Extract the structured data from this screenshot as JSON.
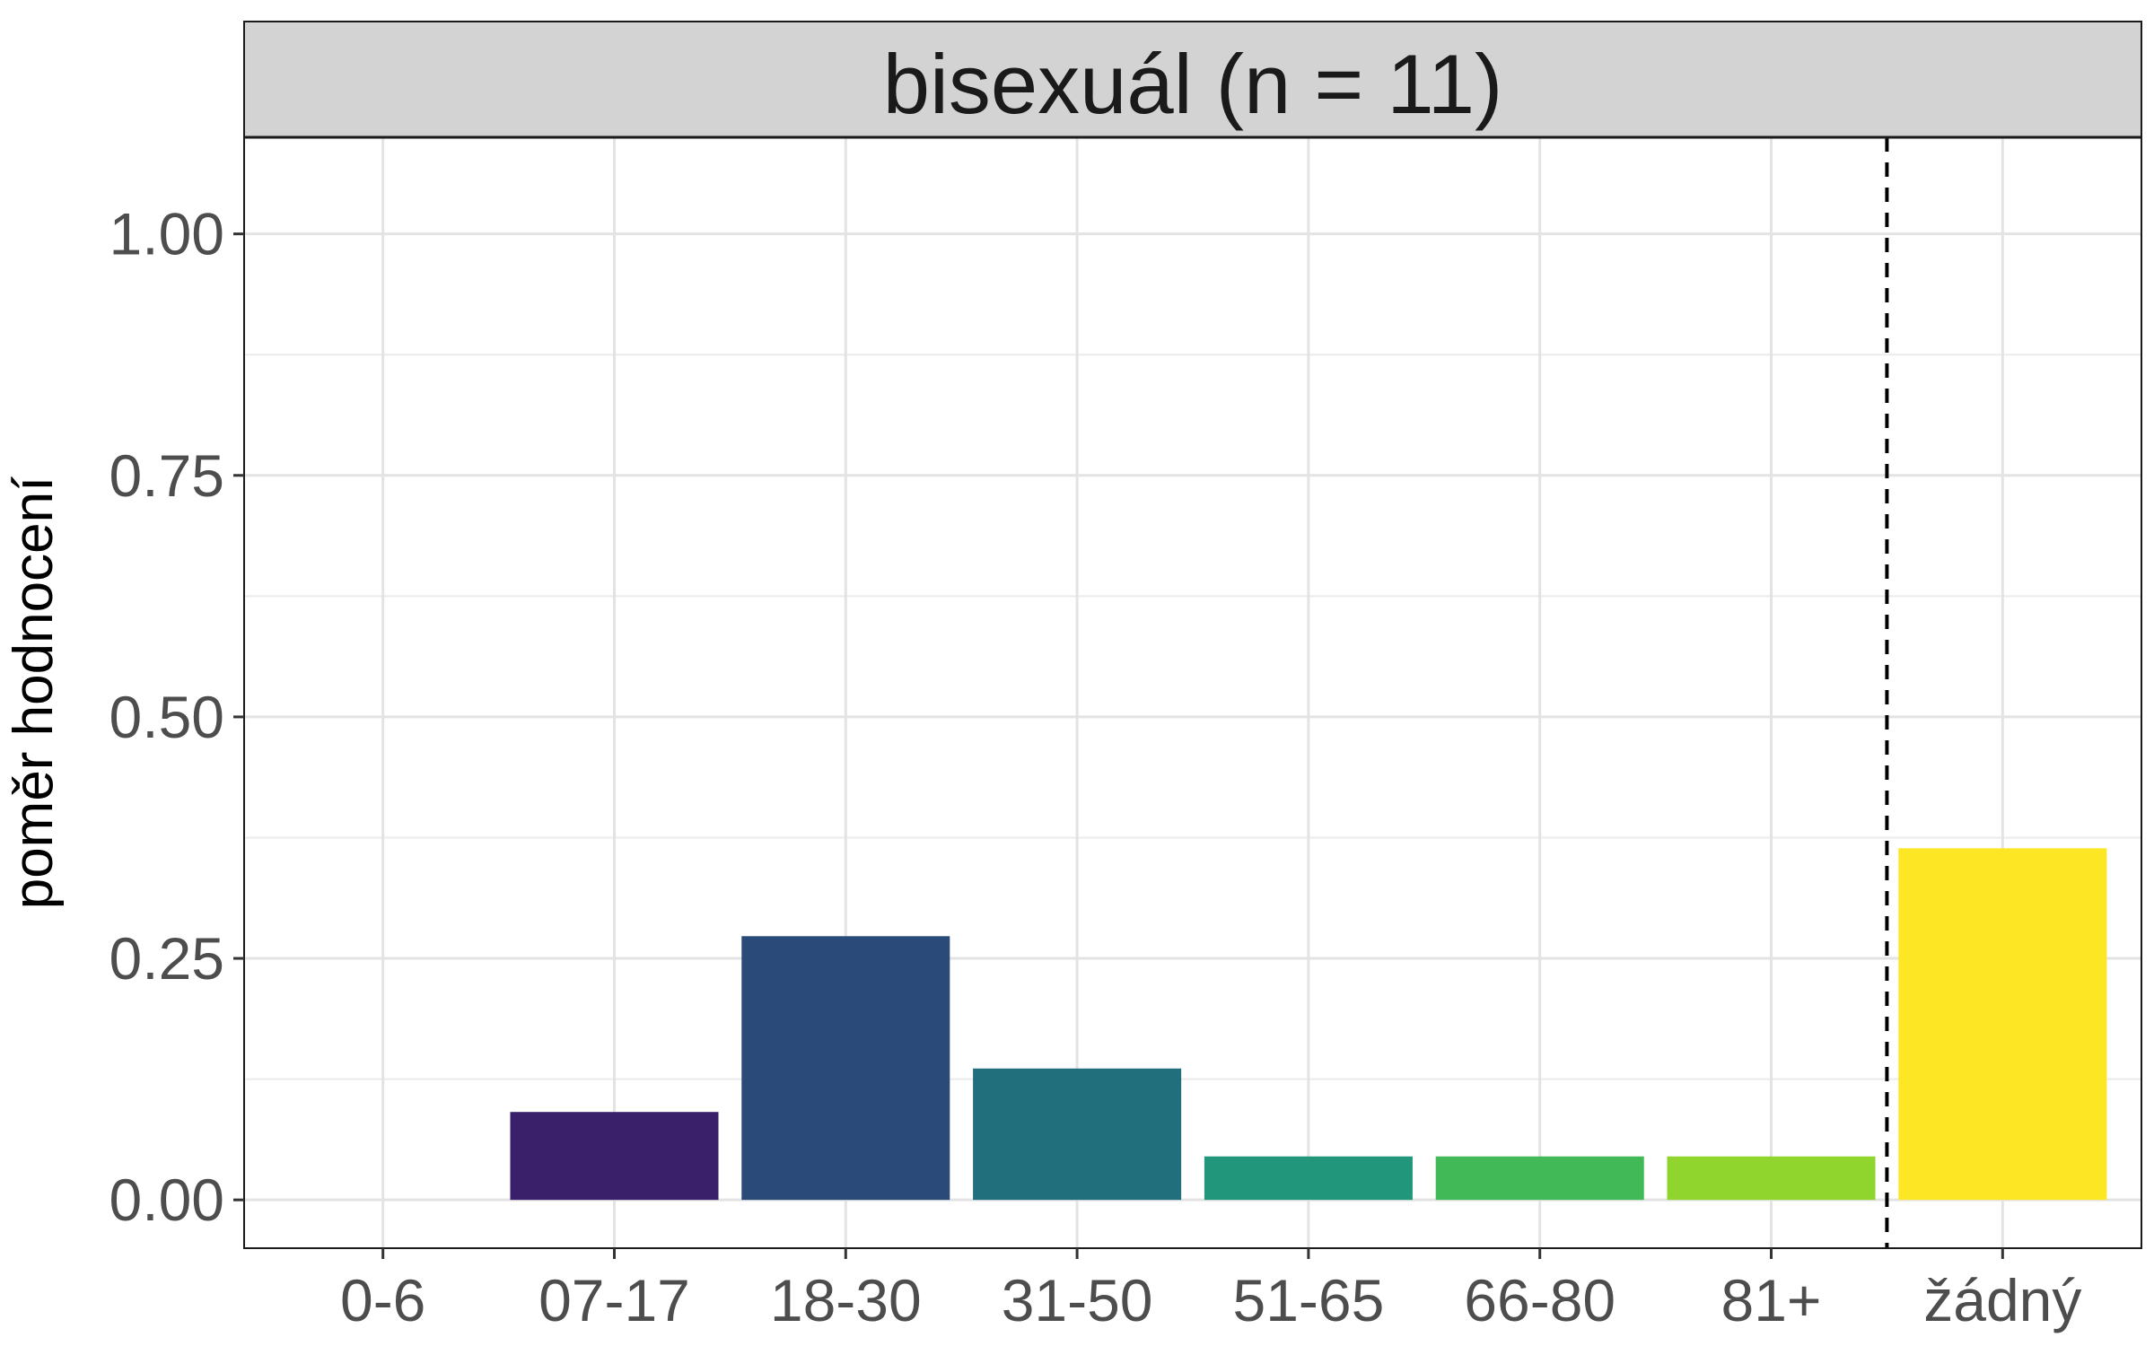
{
  "chart_data": {
    "type": "bar",
    "title": "bisexuál (n = 11)",
    "xlabel": "",
    "ylabel": "poměr hodnocení",
    "categories": [
      "0-6",
      "07-17",
      "18-30",
      "31-50",
      "51-65",
      "66-80",
      "81+",
      "žádný"
    ],
    "values": [
      0,
      0.091,
      0.273,
      0.136,
      0.045,
      0.045,
      0.045,
      0.364
    ],
    "colors": [
      "#440154",
      "#3a1f6b",
      "#2a4a7a",
      "#216e7c",
      "#22967a",
      "#41b956",
      "#8fd52e",
      "#fde725"
    ],
    "ylim": [
      -0.05,
      1.1
    ],
    "yticks": [
      0,
      0.25,
      0.5,
      0.75,
      1.0
    ],
    "ytick_labels": [
      "0.00",
      "0.25",
      "0.50",
      "0.75",
      "1.00"
    ],
    "separator": {
      "style": "dashed",
      "between": [
        "81+",
        "žádný"
      ]
    },
    "grid": true,
    "legend": "none"
  }
}
